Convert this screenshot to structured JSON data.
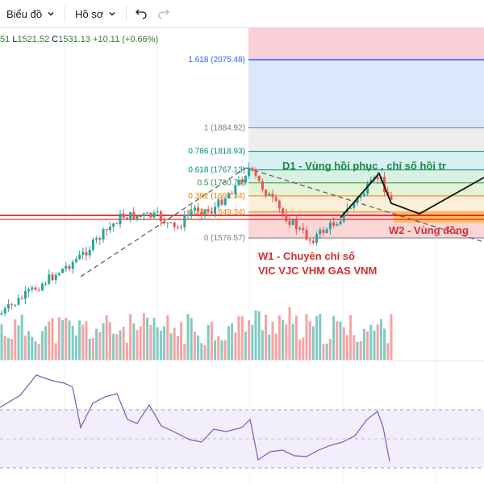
{
  "toolbar": {
    "chart_label": "Biểu đồ",
    "profile_label": "Hồ sơ",
    "undo_icon": "undo-icon",
    "redo_icon": "redo-icon"
  },
  "ohlc": {
    "open_fragment": "51",
    "low_key": "L",
    "low_value": "1521.52",
    "close_key": "C",
    "close_value": "1531.13",
    "change": "+10.11 (+0.66%)"
  },
  "fib_levels": [
    {
      "label": "1.618 (2075.48)",
      "ratio": 1.618,
      "price": 2075.48,
      "color": "#2962ff"
    },
    {
      "label": "1 (1884.92)",
      "ratio": 1,
      "price": 1884.92,
      "color": "#787b86"
    },
    {
      "label": "0.786 (1818.93)",
      "ratio": 0.786,
      "price": 1818.93,
      "color": "#00897b"
    },
    {
      "label": "0.618 (1767.13)",
      "ratio": 0.618,
      "price": 1767.13,
      "color": "#00897b"
    },
    {
      "label": "0.5 (1730.74)",
      "ratio": 0.5,
      "price": 1730.74,
      "color": "#388e3c"
    },
    {
      "label": "0.382 (1694.34)",
      "ratio": 0.382,
      "price": 1694.34,
      "color": "#f57c00"
    },
    {
      "label": "0.236 (1649.34)",
      "ratio": 0.236,
      "price": 1649.34,
      "color": "#f57c00"
    },
    {
      "label": "0 (1576.57)",
      "ratio": 0,
      "price": 1576.57,
      "color": "#787b86"
    }
  ],
  "annotations": {
    "d1": "D1 - Vùng hồi phục , chỉ số hồi tr",
    "w2": "W2 - Vùng đồng",
    "w1_line1": "W1 - Chuyên chỉ số",
    "w1_line2": "VIC VJC VHM GAS VNM"
  },
  "colors": {
    "up": "#26a69a",
    "down": "#ef5350",
    "hline": "#d50000",
    "rsi": "#7e57c2",
    "annotation_green": "#1b8a3a",
    "annotation_red": "#d32f2f"
  }
}
